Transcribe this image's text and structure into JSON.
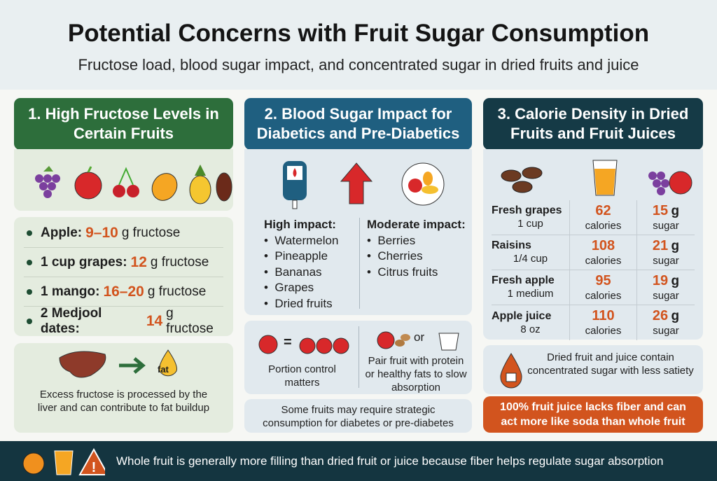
{
  "title": "Potential Concerns with Fruit Sugar Consumption",
  "subtitle": "Fructose load, blood sugar impact, and concentrated sugar in dried fruits and juice",
  "colors": {
    "green": "#2d6e3b",
    "blue": "#1f5f80",
    "dark": "#153a46",
    "accent": "#d2541e"
  },
  "section1": {
    "heading": "1. High Fructose Levels in Certain Fruits",
    "icons": [
      "grapes-icon",
      "apple-icon",
      "cherries-icon",
      "mango-icon",
      "pineapple-icon",
      "date-icon"
    ],
    "items": [
      {
        "label": "Apple:",
        "value": "9–10",
        "unit": "g fructose"
      },
      {
        "label": "1 cup grapes:",
        "value": "12",
        "unit": "g fructose"
      },
      {
        "label": "1 mango:",
        "value": "16–20",
        "unit": "g fructose"
      },
      {
        "label": "2 Medjool dates:",
        "value": "14",
        "unit": "g fructose"
      }
    ],
    "liver_icon_label": "fat",
    "liver_note": "Excess fructose is processed by the liver and can contribute to fat buildup"
  },
  "section2": {
    "heading": "2. Blood Sugar Impact for Diabetics and Pre-Diabetics",
    "high_title": "High impact:",
    "high": [
      "Watermelon",
      "Pineapple",
      "Bananas",
      "Grapes",
      "Dried fruits"
    ],
    "moderate_title": "Moderate impact:",
    "moderate": [
      "Berries",
      "Cherries",
      "Citrus fruits"
    ],
    "equals": "=",
    "or": "or",
    "portion": "Portion control matters",
    "pair": "Pair fruit with protein or healthy fats to slow absorption",
    "note": "Some fruits may require strategic consumption for diabetes or pre-diabetes"
  },
  "section3": {
    "heading": "3. Calorie Density in Dried Fruits and Fruit Juices",
    "rows": [
      {
        "name": "Fresh grapes",
        "serving": "1 cup",
        "calories": "62",
        "cal_label": "calories",
        "sugar": "15",
        "sugar_unit": "g",
        "sugar_label": "sugar"
      },
      {
        "name": "Raisins",
        "serving": "1/4 cup",
        "calories": "108",
        "cal_label": "calories",
        "sugar": "21",
        "sugar_unit": "g",
        "sugar_label": "sugar"
      },
      {
        "name": "Fresh apple",
        "serving": "1 medium",
        "calories": "95",
        "cal_label": "calories",
        "sugar": "19",
        "sugar_unit": "g",
        "sugar_label": "sugar"
      },
      {
        "name": "Apple juice",
        "serving": "8 oz",
        "calories": "110",
        "cal_label": "calories",
        "sugar": "26",
        "sugar_unit": "g",
        "sugar_label": "sugar"
      }
    ],
    "note": "Dried fruit and juice contain concentrated sugar with less satiety",
    "warning": "100% fruit juice lacks fiber and can act more like soda than whole fruit"
  },
  "footer": {
    "text": "Whole fruit is generally more filling than dried fruit or juice because fiber helps regulate sugar absorption"
  }
}
